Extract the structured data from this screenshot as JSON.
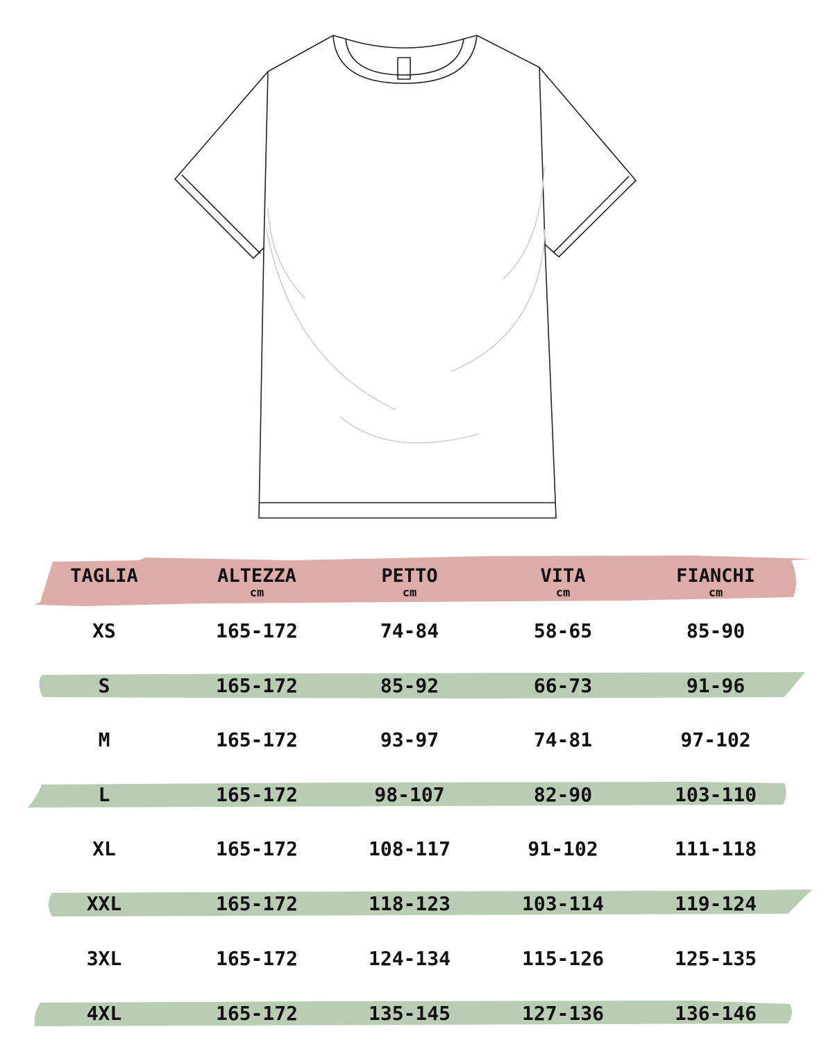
{
  "colors": {
    "header_band": "#dcaca9",
    "row_band": "#b9ccb4",
    "text": "#111111",
    "outline": "#222222",
    "fold_shading": "#cccccc"
  },
  "illustration": "t-shirt-outline",
  "table": {
    "headers": [
      {
        "label": "TAGLIA",
        "unit": ""
      },
      {
        "label": "ALTEZZA",
        "unit": "cm"
      },
      {
        "label": "PETTO",
        "unit": "cm"
      },
      {
        "label": "VITA",
        "unit": "cm"
      },
      {
        "label": "FIANCHI",
        "unit": "cm"
      }
    ],
    "rows": [
      [
        "XS",
        "165-172",
        "74-84",
        "58-65",
        "85-90"
      ],
      [
        "S",
        "165-172",
        "85-92",
        "66-73",
        "91-96"
      ],
      [
        "M",
        "165-172",
        "93-97",
        "74-81",
        "97-102"
      ],
      [
        "L",
        "165-172",
        "98-107",
        "82-90",
        "103-110"
      ],
      [
        "XL",
        "165-172",
        "108-117",
        "91-102",
        "111-118"
      ],
      [
        "XXL",
        "165-172",
        "118-123",
        "103-114",
        "119-124"
      ],
      [
        "3XL",
        "165-172",
        "124-134",
        "115-126",
        "125-135"
      ],
      [
        "4XL",
        "165-172",
        "135-145",
        "127-136",
        "136-146"
      ]
    ]
  }
}
